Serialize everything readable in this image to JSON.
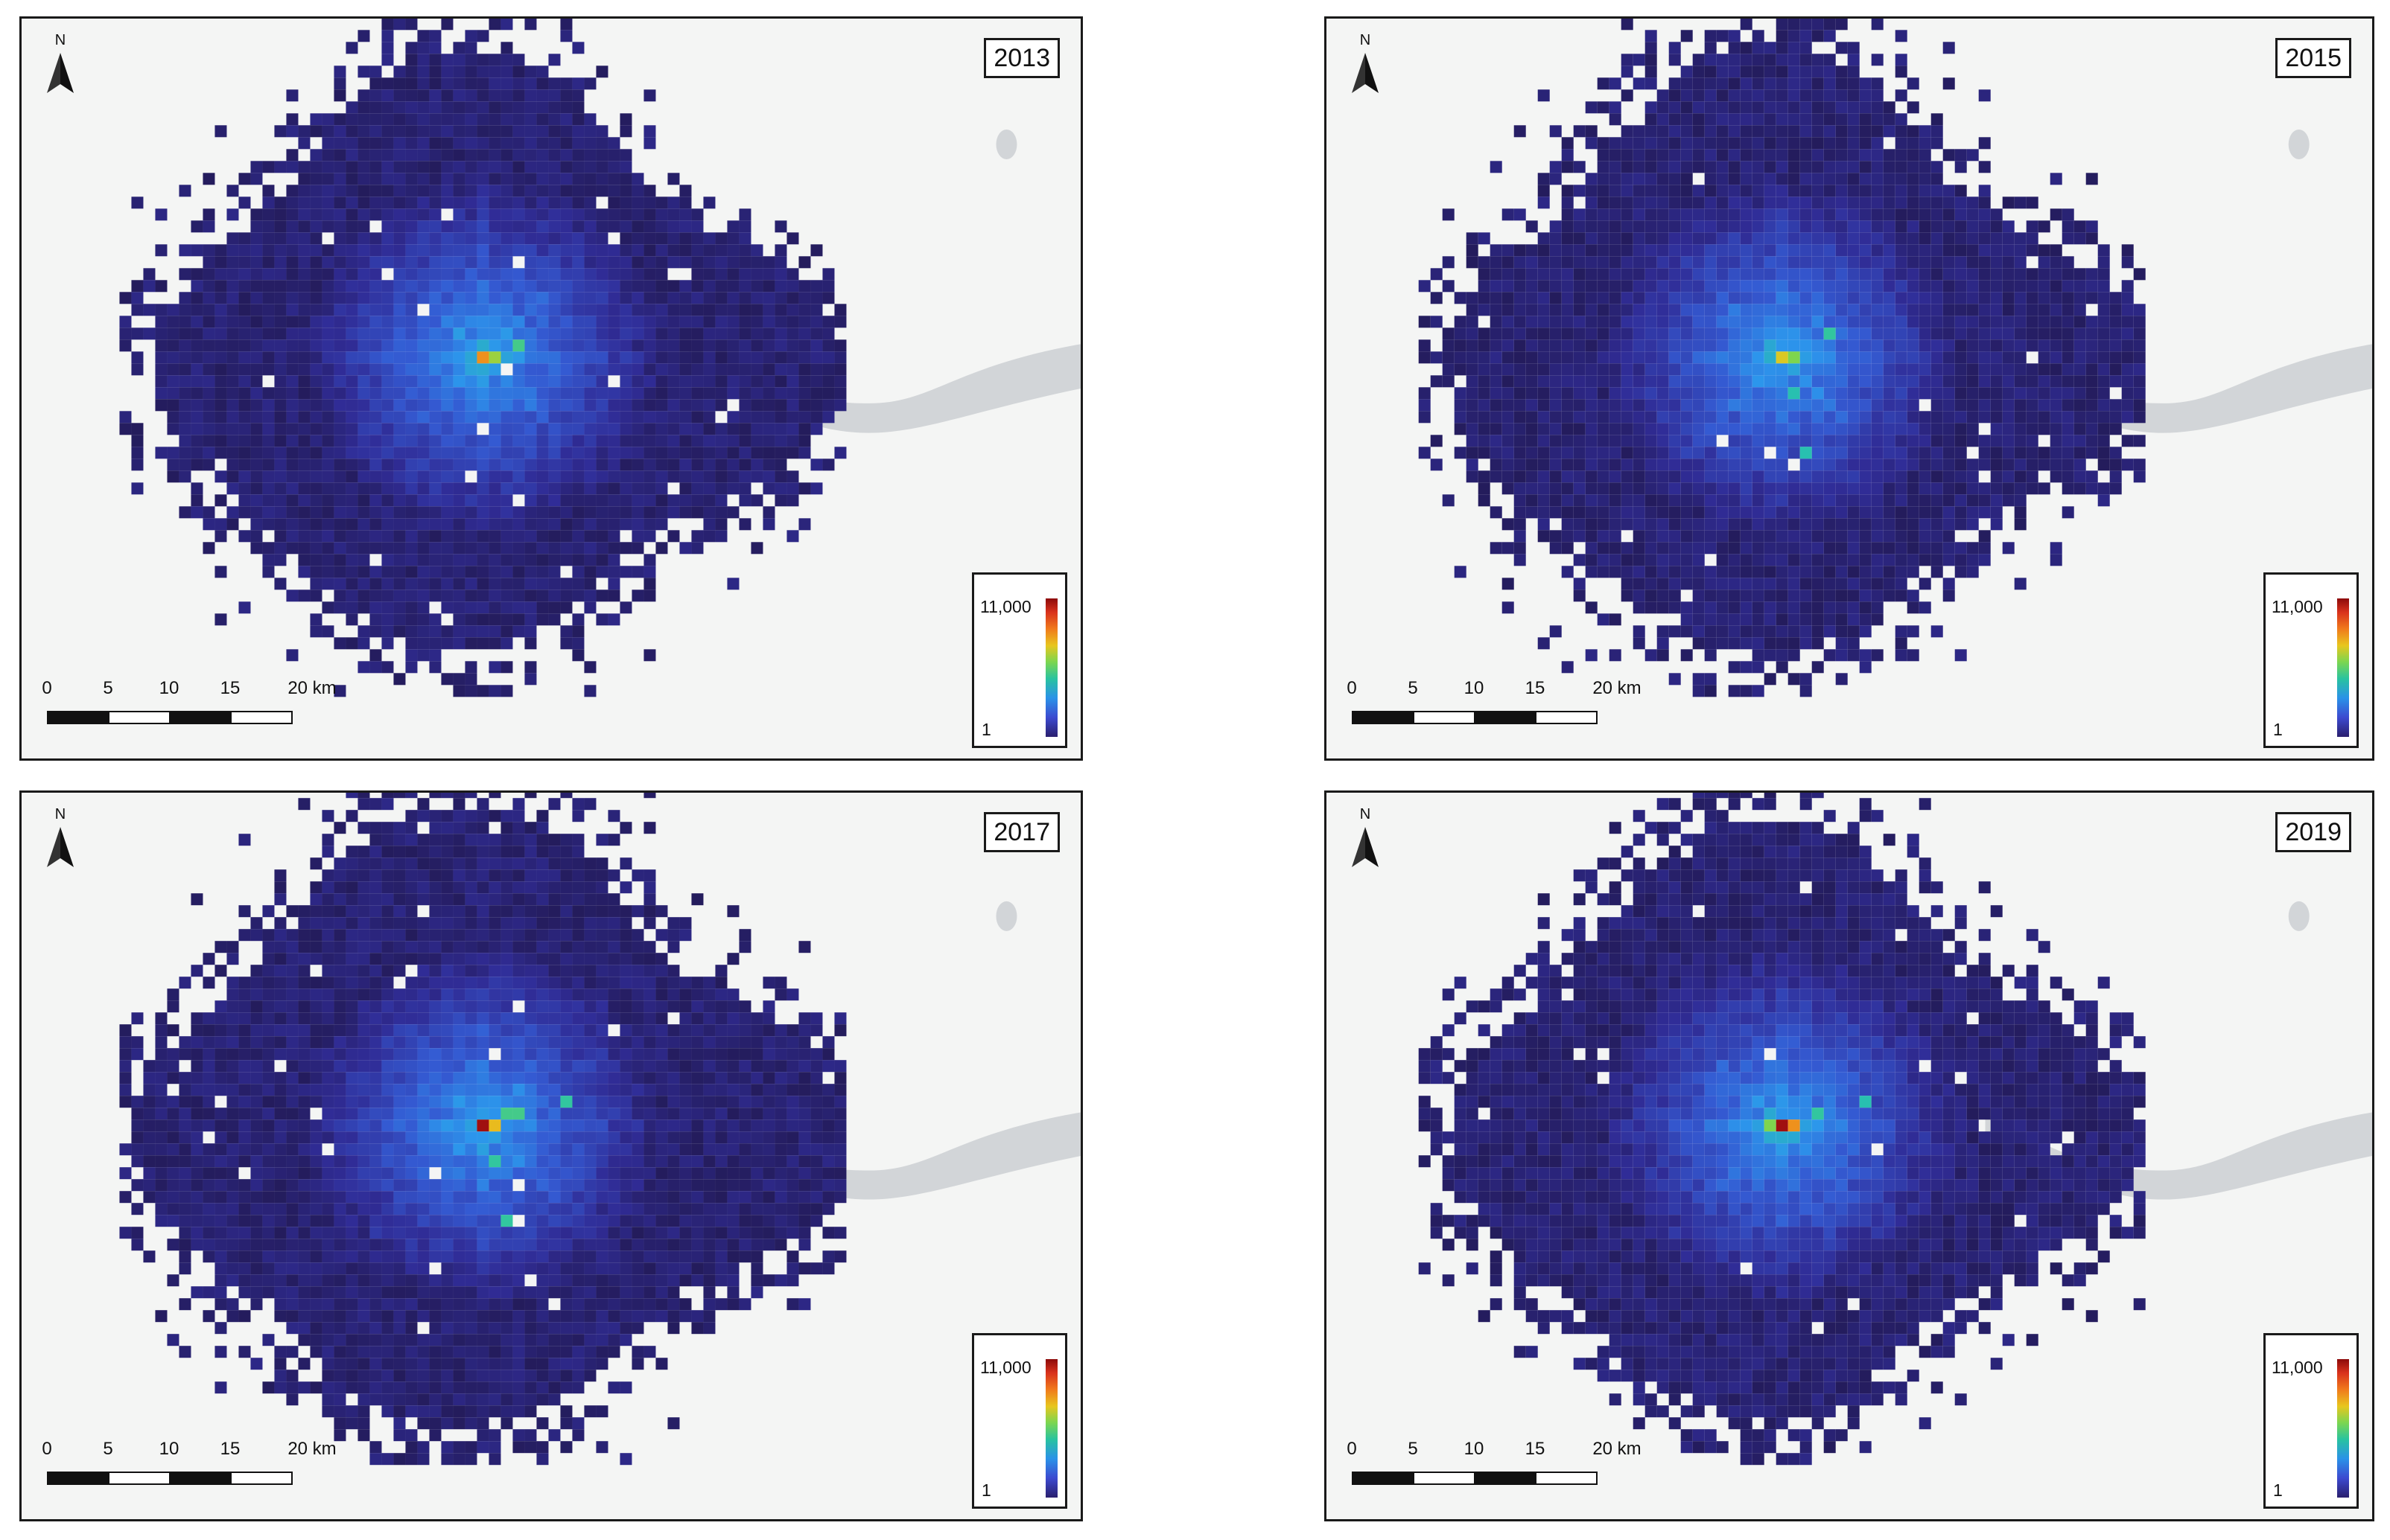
{
  "figure": {
    "panels": [
      {
        "id": "2013",
        "year_label": "2013",
        "seed": 13,
        "extent": 1.0,
        "hot": [
          [
            0,
            0,
            1.0
          ],
          [
            1,
            0,
            0.75
          ],
          [
            3,
            -1,
            0.55
          ]
        ]
      },
      {
        "id": "2015",
        "year_label": "2015",
        "seed": 15,
        "extent": 1.02,
        "hot": [
          [
            0,
            0,
            0.85
          ],
          [
            1,
            0,
            0.7
          ],
          [
            4,
            -2,
            0.5
          ],
          [
            1,
            3,
            0.45
          ],
          [
            2,
            8,
            0.45
          ]
        ]
      },
      {
        "id": "2017",
        "year_label": "2017",
        "seed": 17,
        "extent": 1.06,
        "hot": [
          [
            0,
            0,
            1.3
          ],
          [
            1,
            0,
            0.9
          ],
          [
            2,
            -1,
            0.55
          ],
          [
            3,
            -1,
            0.55
          ],
          [
            7,
            -2,
            0.5
          ],
          [
            1,
            3,
            0.5
          ],
          [
            2,
            8,
            0.5
          ]
        ]
      },
      {
        "id": "2019",
        "year_label": "2019",
        "seed": 19,
        "extent": 1.02,
        "hot": [
          [
            0,
            0,
            1.3
          ],
          [
            1,
            0,
            1.0
          ],
          [
            -1,
            0,
            0.7
          ],
          [
            3,
            -1,
            0.5
          ],
          [
            7,
            -2,
            0.45
          ]
        ]
      }
    ],
    "legend": {
      "max_label": "11,000",
      "min_label": "1"
    },
    "scalebar": {
      "ticks": [
        "0",
        "5",
        "10",
        "15",
        "20 km"
      ]
    },
    "north_label": "N",
    "colors": {
      "base": "#241c5c",
      "water": "#d2d5d8",
      "land": "#f4f5f4"
    }
  }
}
